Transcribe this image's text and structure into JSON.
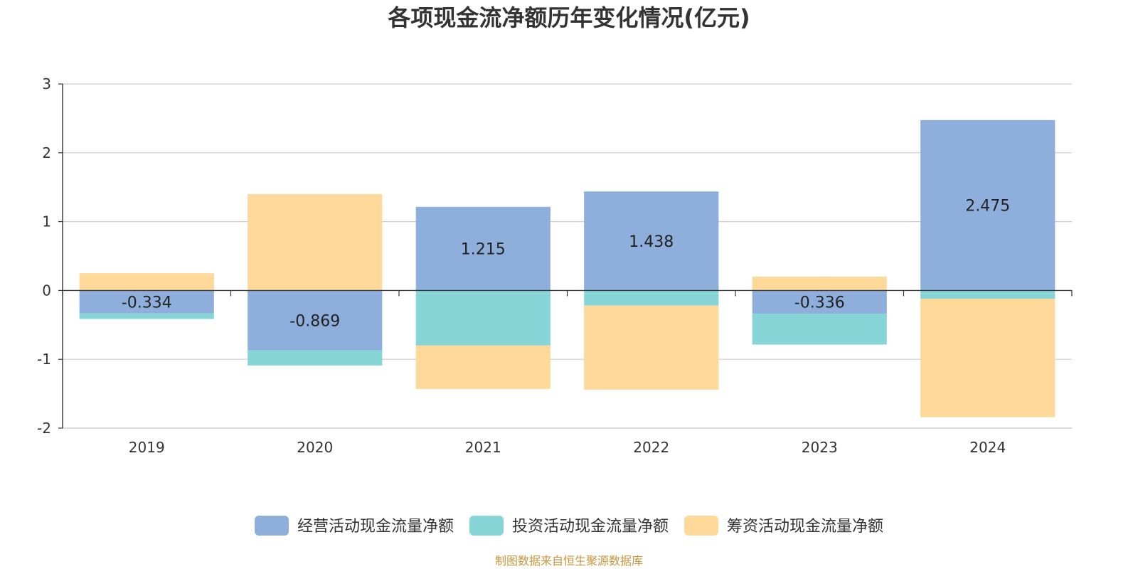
{
  "chart_data": {
    "type": "bar",
    "stacked": true,
    "title": "各项现金流净额历年变化情况(亿元)",
    "categories": [
      "2019",
      "2020",
      "2021",
      "2022",
      "2023",
      "2024"
    ],
    "ylim": [
      -2,
      3
    ],
    "yticks": [
      3,
      2,
      1,
      0,
      -1,
      -2
    ],
    "grid": true,
    "legend_position": "bottom",
    "series": [
      {
        "name": "经营活动现金流量净额",
        "color": "#8eaedb",
        "values": [
          -0.334,
          -0.869,
          1.215,
          1.438,
          -0.336,
          2.475
        ],
        "show_labels": true
      },
      {
        "name": "投资活动现金流量净额",
        "color": "#88d5d8",
        "values": [
          -0.08,
          -0.22,
          -0.8,
          -0.22,
          -0.45,
          -0.12
        ],
        "show_labels": false
      },
      {
        "name": "筹资活动现金流量净额",
        "color": "#fed999",
        "values": [
          0.25,
          1.4,
          -0.63,
          -1.22,
          0.2,
          -1.72
        ],
        "show_labels": false
      }
    ],
    "data_labels": [
      "-0.334",
      "-0.869",
      "1.215",
      "1.438",
      "-0.336",
      "2.475"
    ]
  },
  "source": {
    "text": "制图数据来自恒生聚源数据库",
    "color": "#c8963e"
  }
}
